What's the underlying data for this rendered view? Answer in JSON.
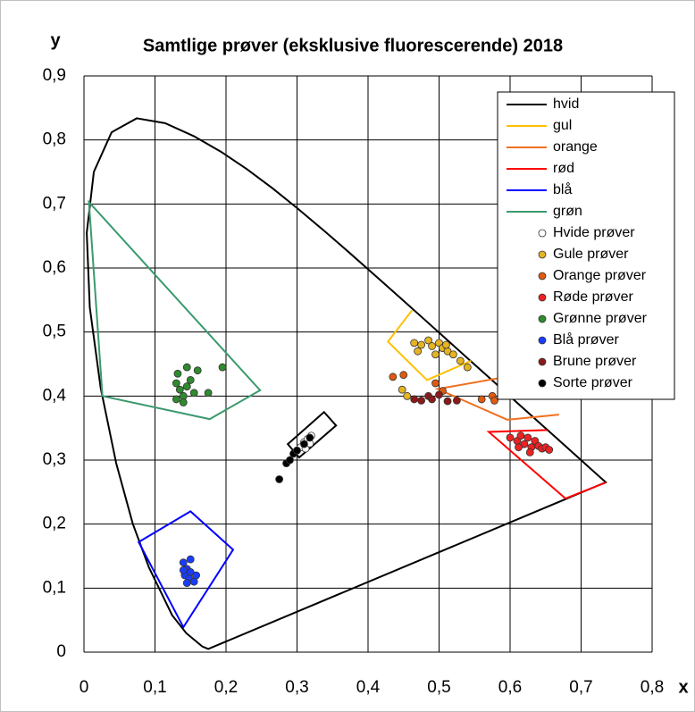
{
  "chart_data": {
    "type": "scatter",
    "title": "Samtlige prøver (eksklusive fluorescerende) 2018",
    "xlabel": "x",
    "ylabel": "y",
    "xlim": [
      0,
      0.8
    ],
    "ylim": [
      0,
      0.9
    ],
    "xticks": [
      0,
      {
        "value": 0.1,
        "label": "0,1"
      },
      {
        "value": 0.2,
        "label": "0,2"
      },
      {
        "value": 0.3,
        "label": "0,3"
      },
      {
        "value": 0.4,
        "label": "0,4"
      },
      {
        "value": 0.5,
        "label": "0,5"
      },
      {
        "value": 0.6,
        "label": "0,6"
      },
      {
        "value": 0.7,
        "label": "0,7"
      },
      {
        "value": 0.8,
        "label": "0,8"
      }
    ],
    "yticks": [
      0,
      {
        "value": 0.1,
        "label": "0,1"
      },
      {
        "value": 0.2,
        "label": "0,2"
      },
      {
        "value": 0.3,
        "label": "0,3"
      },
      {
        "value": 0.4,
        "label": "0,4"
      },
      {
        "value": 0.5,
        "label": "0,5"
      },
      {
        "value": 0.6,
        "label": "0,6"
      },
      {
        "value": 0.7,
        "label": "0,7"
      },
      {
        "value": 0.8,
        "label": "0,8"
      },
      {
        "value": 0.9,
        "label": "0,9"
      }
    ],
    "grid": true,
    "legend": "upper right",
    "series": [
      {
        "color": "#000000",
        "mode": "lines",
        "closed": true,
        "x": [
          0.175,
          0.1666,
          0.144,
          0.1241,
          0.0913,
          0.0687,
          0.0454,
          0.0235,
          0.0082,
          0.0039,
          0.0139,
          0.0389,
          0.0743,
          0.1142,
          0.1547,
          0.1929,
          0.2296,
          0.2658,
          0.3016,
          0.3373,
          0.3731,
          0.4087,
          0.4441,
          0.4788,
          0.5125,
          0.5448,
          0.5752,
          0.6029,
          0.627,
          0.6482,
          0.6658,
          0.6801,
          0.6915,
          0.7006,
          0.7079,
          0.714,
          0.719,
          0.7347
        ],
        "y": [
          0.005,
          0.0089,
          0.0297,
          0.0578,
          0.1327,
          0.2007,
          0.295,
          0.4127,
          0.5384,
          0.6548,
          0.7502,
          0.812,
          0.8338,
          0.8262,
          0.8059,
          0.7816,
          0.7543,
          0.7243,
          0.6923,
          0.6589,
          0.6245,
          0.5896,
          0.5547,
          0.5202,
          0.4866,
          0.4544,
          0.4242,
          0.3965,
          0.3725,
          0.3514,
          0.334,
          0.3197,
          0.3083,
          0.2993,
          0.292,
          0.2859,
          0.2809,
          0.2653
        ]
      },
      {
        "name": "hvid",
        "color": "#000000",
        "mode": "lines",
        "closed": true,
        "x": [
          0.287,
          0.338,
          0.355,
          0.303
        ],
        "y": [
          0.325,
          0.375,
          0.354,
          0.304
        ]
      },
      {
        "name": "gul",
        "color": "#ffc000",
        "mode": "lines",
        "x": [
          0.462,
          0.428,
          0.483,
          0.545
        ],
        "y": [
          0.534,
          0.485,
          0.425,
          0.455
        ]
      },
      {
        "name": "orange",
        "color": "#f07020",
        "mode": "lines",
        "x": [
          0.605,
          0.498,
          0.596,
          0.669
        ],
        "y": [
          0.432,
          0.411,
          0.363,
          0.371
        ]
      },
      {
        "name": "rød",
        "color": "#ff0000",
        "mode": "lines",
        "x": [
          0.652,
          0.57,
          0.678,
          0.735
        ],
        "y": [
          0.347,
          0.344,
          0.24,
          0.265
        ]
      },
      {
        "name": "blå",
        "color": "#0000ff",
        "mode": "lines",
        "closed": true,
        "x": [
          0.15,
          0.21,
          0.14,
          0.077
        ],
        "y": [
          0.22,
          0.16,
          0.039,
          0.172
        ]
      },
      {
        "name": "grøn",
        "color": "#3a9a6e",
        "mode": "lines",
        "closed": true,
        "x": [
          0.007,
          0.248,
          0.177,
          0.026
        ],
        "y": [
          0.703,
          0.409,
          0.364,
          0.4
        ]
      },
      {
        "name": "Hvide prøver",
        "color": "#ffffff",
        "mode": "markers",
        "x": [
          0.3,
          0.305,
          0.31,
          0.312,
          0.315,
          0.32,
          0.318
        ],
        "y": [
          0.315,
          0.32,
          0.328,
          0.318,
          0.333,
          0.338,
          0.326
        ]
      },
      {
        "name": "Gule prøver",
        "color": "#e6b422",
        "mode": "markers",
        "x": [
          0.465,
          0.475,
          0.485,
          0.49,
          0.5,
          0.505,
          0.512,
          0.52,
          0.53,
          0.54,
          0.47,
          0.495,
          0.448,
          0.455,
          0.51
        ],
        "y": [
          0.483,
          0.48,
          0.487,
          0.478,
          0.483,
          0.475,
          0.47,
          0.465,
          0.455,
          0.445,
          0.47,
          0.465,
          0.41,
          0.4,
          0.48
        ]
      },
      {
        "name": "Orange prøver",
        "color": "#e05a10",
        "mode": "markers",
        "x": [
          0.435,
          0.45,
          0.495,
          0.505,
          0.56,
          0.575,
          0.578
        ],
        "y": [
          0.43,
          0.433,
          0.42,
          0.408,
          0.395,
          0.4,
          0.393
        ]
      },
      {
        "name": "Røde prøver",
        "color": "#ee2222",
        "mode": "markers",
        "x": [
          0.6,
          0.61,
          0.615,
          0.62,
          0.625,
          0.63,
          0.635,
          0.64,
          0.645,
          0.65,
          0.655,
          0.612,
          0.628
        ],
        "y": [
          0.335,
          0.33,
          0.338,
          0.325,
          0.335,
          0.32,
          0.33,
          0.322,
          0.318,
          0.32,
          0.316,
          0.32,
          0.312
        ]
      },
      {
        "name": "Grønne prøver",
        "color": "#2e8b2e",
        "mode": "markers",
        "x": [
          0.13,
          0.135,
          0.14,
          0.145,
          0.13,
          0.15,
          0.155,
          0.145,
          0.16,
          0.175,
          0.195,
          0.132,
          0.14
        ],
        "y": [
          0.42,
          0.41,
          0.4,
          0.415,
          0.395,
          0.425,
          0.405,
          0.445,
          0.44,
          0.405,
          0.445,
          0.435,
          0.39
        ]
      },
      {
        "name": "Blå prøver",
        "color": "#1a3cff",
        "mode": "markers",
        "x": [
          0.14,
          0.145,
          0.15,
          0.142,
          0.148,
          0.155,
          0.15,
          0.14,
          0.158,
          0.145
        ],
        "y": [
          0.14,
          0.13,
          0.125,
          0.12,
          0.115,
          0.11,
          0.145,
          0.128,
          0.12,
          0.108
        ]
      },
      {
        "name": "Brune prøver",
        "color": "#8b1a1a",
        "mode": "markers",
        "x": [
          0.465,
          0.475,
          0.485,
          0.49,
          0.5,
          0.512,
          0.525
        ],
        "y": [
          0.395,
          0.393,
          0.4,
          0.395,
          0.402,
          0.392,
          0.393
        ]
      },
      {
        "name": "Sorte prøver",
        "color": "#000000",
        "mode": "markers",
        "x": [
          0.275,
          0.285,
          0.29,
          0.295,
          0.3,
          0.31,
          0.318
        ],
        "y": [
          0.27,
          0.295,
          0.3,
          0.31,
          0.315,
          0.325,
          0.335
        ]
      }
    ]
  }
}
